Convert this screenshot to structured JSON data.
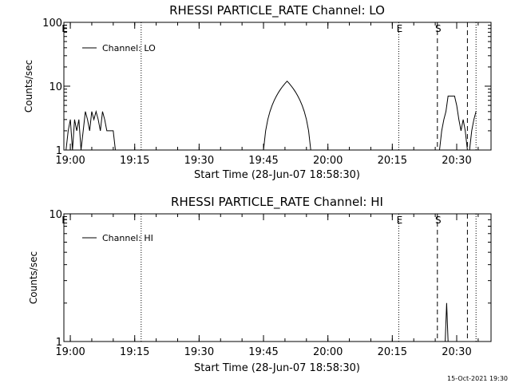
{
  "chart_data": [
    {
      "type": "line",
      "title": "RHESSI PARTICLE_RATE Channel: LO",
      "xlabel": "Start Time (28-Jun-07 18:58:30)",
      "ylabel": "Counts/sec",
      "yscale": "log",
      "ylim": [
        1,
        100
      ],
      "xlim": [
        "18:58:30",
        "20:38:00"
      ],
      "x_ticks": [
        "19:00",
        "19:15",
        "19:30",
        "19:45",
        "20:00",
        "20:15",
        "20:30"
      ],
      "y_ticks": [
        "1",
        "10",
        "100"
      ],
      "grid": false,
      "legend": "upper-left",
      "series": [
        {
          "name": "Channel: LO",
          "color": "#000000",
          "points": [
            [
              "18:58:30",
              1
            ],
            [
              "18:59:00",
              1
            ],
            [
              "18:59:30",
              2
            ],
            [
              "19:00:00",
              3
            ],
            [
              "19:00:30",
              1
            ],
            [
              "19:01:00",
              3
            ],
            [
              "19:01:30",
              2
            ],
            [
              "19:02:00",
              3
            ],
            [
              "19:02:30",
              1
            ],
            [
              "19:03:00",
              2
            ],
            [
              "19:03:30",
              4
            ],
            [
              "19:04:00",
              3
            ],
            [
              "19:04:30",
              2
            ],
            [
              "19:05:00",
              4
            ],
            [
              "19:05:30",
              3
            ],
            [
              "19:06:00",
              4
            ],
            [
              "19:06:30",
              3
            ],
            [
              "19:07:00",
              2
            ],
            [
              "19:07:30",
              4
            ],
            [
              "19:08:00",
              3
            ],
            [
              "19:08:30",
              2
            ],
            [
              "19:10:00",
              2
            ],
            [
              "19:10:30",
              1
            ],
            [
              "19:45:00",
              1
            ],
            [
              "19:45:30",
              2
            ],
            [
              "19:46:00",
              3
            ],
            [
              "19:46:30",
              4
            ],
            [
              "19:47:00",
              5
            ],
            [
              "19:47:30",
              6
            ],
            [
              "19:48:00",
              7
            ],
            [
              "19:48:30",
              8
            ],
            [
              "19:49:00",
              9
            ],
            [
              "19:49:30",
              10
            ],
            [
              "19:50:00",
              11
            ],
            [
              "19:50:30",
              12
            ],
            [
              "19:51:00",
              11
            ],
            [
              "19:51:30",
              10
            ],
            [
              "19:52:00",
              9
            ],
            [
              "19:52:30",
              8
            ],
            [
              "19:53:00",
              7
            ],
            [
              "19:53:30",
              6
            ],
            [
              "19:54:00",
              5
            ],
            [
              "19:54:30",
              4
            ],
            [
              "19:55:00",
              3
            ],
            [
              "19:55:30",
              2
            ],
            [
              "19:56:00",
              1
            ],
            [
              "20:26:00",
              1
            ],
            [
              "20:26:30",
              2
            ],
            [
              "20:27:00",
              3
            ],
            [
              "20:27:30",
              4
            ],
            [
              "20:28:00",
              7
            ],
            [
              "20:29:00",
              7
            ],
            [
              "20:29:30",
              7
            ],
            [
              "20:30:00",
              5
            ],
            [
              "20:30:30",
              3
            ],
            [
              "20:31:00",
              2
            ],
            [
              "20:31:30",
              3
            ],
            [
              "20:32:00",
              2
            ],
            [
              "20:32:30",
              1
            ],
            [
              "20:33:00",
              1
            ],
            [
              "20:33:30",
              2
            ],
            [
              "20:34:00",
              3
            ],
            [
              "20:34:30",
              4
            ]
          ]
        }
      ],
      "markers": [
        {
          "label": "E",
          "time": "18:58:30",
          "style": "dotted"
        },
        {
          "label": "",
          "time": "19:16:30",
          "style": "dotted"
        },
        {
          "label": "E",
          "time": "20:16:30",
          "style": "dotted"
        },
        {
          "label": "S",
          "time": "20:25:30",
          "style": "dashed"
        },
        {
          "label": "",
          "time": "20:32:30",
          "style": "dashed"
        },
        {
          "label": "",
          "time": "20:34:30",
          "style": "dotted"
        }
      ]
    },
    {
      "type": "line",
      "title": "RHESSI PARTICLE_RATE Channel: HI",
      "xlabel": "Start Time (28-Jun-07 18:58:30)",
      "ylabel": "Counts/sec",
      "yscale": "log",
      "ylim": [
        1,
        10
      ],
      "xlim": [
        "18:58:30",
        "20:38:00"
      ],
      "x_ticks": [
        "19:00",
        "19:15",
        "19:30",
        "19:45",
        "20:00",
        "20:15",
        "20:30"
      ],
      "y_ticks": [
        "1",
        "10"
      ],
      "grid": false,
      "legend": "upper-left",
      "series": [
        {
          "name": "Channel: HI",
          "color": "#000000",
          "points": [
            [
              "20:27:20",
              1
            ],
            [
              "20:27:40",
              2
            ],
            [
              "20:28:00",
              1
            ]
          ]
        }
      ],
      "markers": [
        {
          "label": "E",
          "time": "18:58:30",
          "style": "dotted"
        },
        {
          "label": "",
          "time": "19:16:30",
          "style": "dotted"
        },
        {
          "label": "E",
          "time": "20:16:30",
          "style": "dotted"
        },
        {
          "label": "S",
          "time": "20:25:30",
          "style": "dashed"
        },
        {
          "label": "",
          "time": "20:32:30",
          "style": "dashed"
        },
        {
          "label": "",
          "time": "20:34:30",
          "style": "dotted"
        }
      ]
    }
  ],
  "footer": {
    "timestamp": "15-Oct-2021 19:30"
  }
}
